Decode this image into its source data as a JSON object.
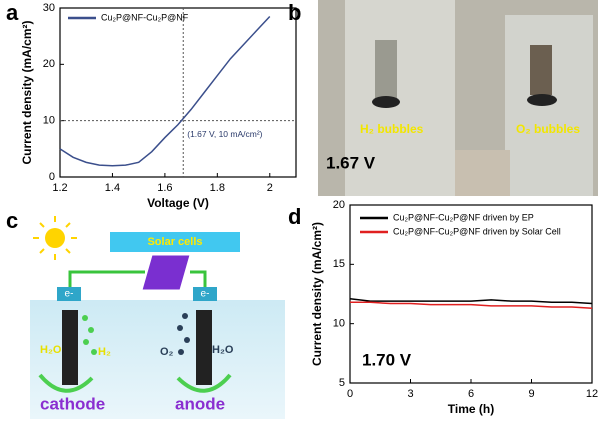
{
  "chart_data": [
    {
      "type": "line",
      "xlabel": "Voltage (V)",
      "ylabel": "Current density (mA/cm²)",
      "x": [
        1.2,
        1.25,
        1.3,
        1.35,
        1.4,
        1.45,
        1.5,
        1.55,
        1.6,
        1.65,
        1.7,
        1.75,
        1.8,
        1.85,
        1.9,
        1.95,
        2.0
      ],
      "series": [
        {
          "name": "Cu₂P@NF-Cu₂P@NF",
          "color": "#3b4f8c",
          "values": [
            5,
            3.5,
            2.6,
            2.1,
            2,
            2.1,
            2.6,
            4.5,
            7,
            9.3,
            12,
            15,
            18,
            21,
            23.5,
            26,
            28.5
          ]
        }
      ],
      "xlim": [
        1.2,
        2.1
      ],
      "xticks": [
        1.2,
        1.4,
        1.6,
        1.8,
        2.0
      ],
      "ylim": [
        0,
        30
      ],
      "yticks": [
        0,
        10,
        20,
        30
      ],
      "hline": 10,
      "vline": 1.67,
      "annotation": "(1.67 V, 10 mA/cm²)",
      "legend": "upper left"
    },
    {
      "type": "line",
      "xlabel": "Time (h)",
      "ylabel": "Current density (mA/cm²)",
      "x": [
        0,
        1,
        2,
        3,
        4,
        5,
        6,
        7,
        8,
        9,
        10,
        11,
        12
      ],
      "series": [
        {
          "name": "Cu₂P@NF-Cu₂P@NF driven by EP",
          "color": "#000000",
          "values": [
            12.1,
            11.9,
            11.9,
            11.9,
            11.9,
            11.9,
            11.9,
            12.0,
            11.9,
            11.9,
            11.8,
            11.8,
            11.7
          ]
        },
        {
          "name": "Cu₂P@NF-Cu₂P@NF driven by Solar Cell",
          "color": "#e02020",
          "values": [
            11.8,
            11.8,
            11.7,
            11.7,
            11.6,
            11.6,
            11.6,
            11.5,
            11.5,
            11.5,
            11.4,
            11.4,
            11.3
          ]
        }
      ],
      "xlim": [
        0,
        12
      ],
      "xticks": [
        0,
        3,
        6,
        9,
        12
      ],
      "ylim": [
        5,
        20
      ],
      "yticks": [
        5,
        10,
        15,
        20
      ],
      "annotation": "1.70 V",
      "legend": "upper left"
    }
  ],
  "panel_labels": [
    "a",
    "b",
    "c",
    "d"
  ],
  "photo": {
    "h2_label": "H₂ bubbles",
    "o2_label": "O₂ bubbles",
    "voltage": "1.67 V"
  },
  "diagram": {
    "solar": "Solar cells",
    "electron_left": "e-",
    "electron_right": "e-",
    "h2o_left": "H₂O",
    "h2": "H₂",
    "o2": "O₂",
    "h2o_right": "H₂O",
    "cathode": "cathode",
    "anode": "anode"
  }
}
